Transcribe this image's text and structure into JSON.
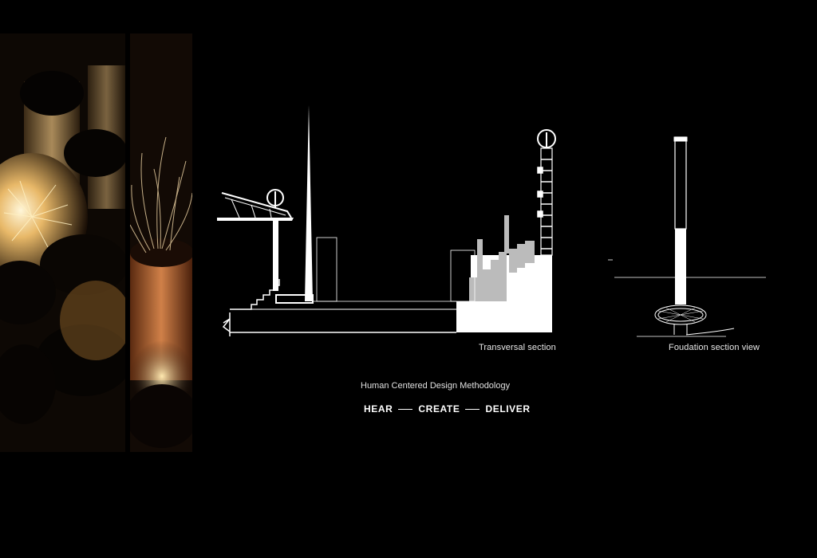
{
  "captions": {
    "transversal": "Transversal section",
    "foundation": "Foudation section view"
  },
  "methodology": {
    "title": "Human Centered Design Methodology",
    "steps": [
      "HEAR",
      "CREATE",
      "DELIVER"
    ]
  },
  "colors": {
    "background": "#000000",
    "line": "#ffffff",
    "photo_glow": "#f5c46a"
  }
}
